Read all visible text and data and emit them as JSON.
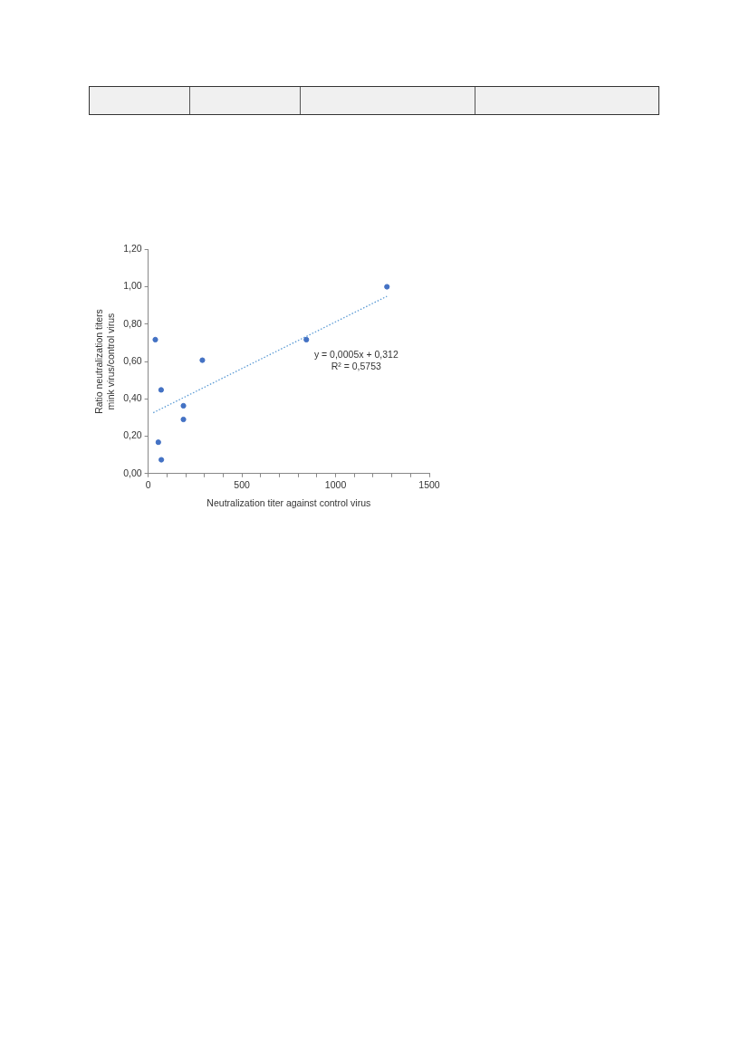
{
  "chart_data": {
    "type": "scatter",
    "xlabel": "Neutralization titer against control virus",
    "ylabel": "Ratio neutralization titers\nmink virus/control virus",
    "series": [
      {
        "color": "#4472c4",
        "marker": "circle",
        "x": [
          38,
          69,
          188,
          188,
          289,
          54,
          70,
          844,
          1274
        ],
        "values": [
          0.717,
          0.448,
          0.363,
          0.29,
          0.607,
          0.168,
          0.074,
          0.717,
          1.0
        ]
      },
      {
        "type": "line",
        "color": "#5b9bd5",
        "line_style": "dotted",
        "marker": "none",
        "x": [
          27,
          1274
        ],
        "values": [
          0.326,
          0.949
        ]
      }
    ],
    "annotations": [
      "y = 0,0005x + 0,312",
      "R² = 0,5753"
    ],
    "xlim": [
      0,
      1500
    ],
    "xticks": [
      0,
      {
        "value": 100,
        "label": null
      },
      {
        "value": 200,
        "label": null
      },
      {
        "value": 300,
        "label": null
      },
      {
        "value": 400,
        "label": null
      },
      500,
      {
        "value": 600,
        "label": null
      },
      {
        "value": 700,
        "label": null
      },
      {
        "value": 800,
        "label": null
      },
      {
        "value": 900,
        "label": null
      },
      1000,
      {
        "value": 1100,
        "label": null
      },
      {
        "value": 1200,
        "label": null
      },
      {
        "value": 1300,
        "label": null
      },
      {
        "value": 1400,
        "label": null
      },
      1500
    ],
    "ylim": [
      0,
      1.2
    ],
    "yticks": [
      {
        "value": 0,
        "label": "0,00"
      },
      {
        "value": 0.2,
        "label": "0,20"
      },
      {
        "value": 0.4,
        "label": "0,40"
      },
      {
        "value": 0.6,
        "label": "0,60"
      },
      {
        "value": 0.8,
        "label": "0,80"
      },
      {
        "value": 1.0,
        "label": "1,00"
      },
      {
        "value": 1.2,
        "label": "1,20"
      }
    ],
    "grid": false,
    "legend": false
  }
}
